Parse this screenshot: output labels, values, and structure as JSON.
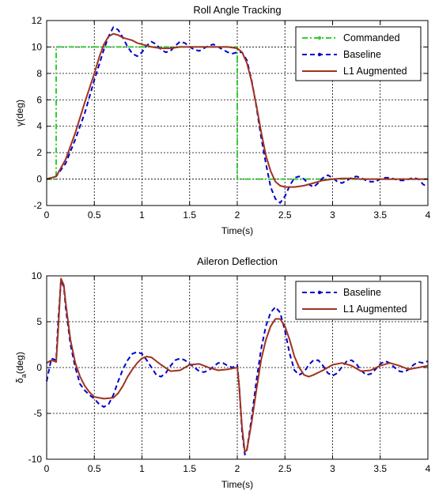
{
  "chart_data": [
    {
      "type": "line",
      "title": "Roll Angle Tracking",
      "xlabel": "Time(s)",
      "ylabel": "γ(deg)",
      "xlim": [
        0,
        4
      ],
      "ylim": [
        -2,
        12
      ],
      "xticks": [
        0,
        0.5,
        1,
        1.5,
        2,
        2.5,
        3,
        3.5,
        4
      ],
      "yticks": [
        -2,
        0,
        2,
        4,
        6,
        8,
        10,
        12
      ],
      "xtick_labels": [
        "0",
        "0.5",
        "1",
        "1.5",
        "2",
        "2.5",
        "3",
        "3.5",
        "4"
      ],
      "ytick_labels": [
        "-2",
        "0",
        "2",
        "4",
        "6",
        "8",
        "10",
        "12"
      ],
      "grid": true,
      "legend_position": "top-right",
      "series": [
        {
          "name": "Commanded",
          "color": "#33cc33",
          "style": "dash-dot",
          "x": [
            0,
            0.1,
            0.1,
            2.0,
            2.0,
            4.0
          ],
          "y": [
            0,
            0,
            10,
            10,
            0,
            0
          ]
        },
        {
          "name": "Baseline",
          "color": "#0000cc",
          "style": "dashed",
          "x": [
            0,
            0.1,
            0.2,
            0.3,
            0.4,
            0.5,
            0.6,
            0.65,
            0.7,
            0.75,
            0.8,
            0.85,
            0.9,
            0.95,
            1.0,
            1.05,
            1.1,
            1.15,
            1.2,
            1.25,
            1.3,
            1.35,
            1.4,
            1.45,
            1.5,
            1.55,
            1.6,
            1.65,
            1.7,
            1.75,
            1.8,
            1.85,
            1.9,
            1.95,
            2.0,
            2.05,
            2.1,
            2.15,
            2.2,
            2.25,
            2.3,
            2.35,
            2.4,
            2.45,
            2.5,
            2.55,
            2.6,
            2.65,
            2.7,
            2.75,
            2.8,
            2.85,
            2.9,
            2.95,
            3.0,
            3.05,
            3.1,
            3.15,
            3.2,
            3.25,
            3.3,
            3.35,
            3.4,
            3.45,
            3.5,
            3.55,
            3.6,
            3.65,
            3.7,
            3.75,
            3.8,
            3.85,
            3.9,
            3.95,
            4.0
          ],
          "y": [
            0,
            0.2,
            1.2,
            3.0,
            5.0,
            7.5,
            9.8,
            10.8,
            11.5,
            11.3,
            10.7,
            10.0,
            9.5,
            9.3,
            9.6,
            10.1,
            10.4,
            10.2,
            9.8,
            9.6,
            9.7,
            10.1,
            10.4,
            10.3,
            10.0,
            9.8,
            9.7,
            9.9,
            10.1,
            10.2,
            10.0,
            9.8,
            9.6,
            9.5,
            9.6,
            9.6,
            9.0,
            7.5,
            5.5,
            3.2,
            1.2,
            -0.6,
            -1.5,
            -1.8,
            -1.3,
            -0.5,
            0.1,
            0.2,
            0.0,
            -0.4,
            -0.6,
            -0.3,
            0.1,
            0.3,
            0.1,
            -0.2,
            -0.3,
            -0.1,
            0.1,
            0.2,
            0.1,
            -0.1,
            -0.2,
            -0.2,
            0.0,
            0.1,
            0.1,
            0.0,
            -0.1,
            -0.1,
            0.0,
            0.1,
            0.0,
            -0.4,
            -0.6
          ]
        },
        {
          "name": "L1 Augmented",
          "color": "#a0321e",
          "style": "solid",
          "x": [
            0,
            0.1,
            0.2,
            0.3,
            0.4,
            0.5,
            0.55,
            0.6,
            0.65,
            0.7,
            0.75,
            0.8,
            0.85,
            0.9,
            0.95,
            1.0,
            1.1,
            1.2,
            1.3,
            1.4,
            1.5,
            1.6,
            1.7,
            1.8,
            1.9,
            2.0,
            2.05,
            2.1,
            2.15,
            2.2,
            2.25,
            2.3,
            2.35,
            2.4,
            2.45,
            2.5,
            2.6,
            2.7,
            2.8,
            2.9,
            3.0,
            3.1,
            3.2,
            3.3,
            3.4,
            3.5,
            3.6,
            3.7,
            3.8,
            3.9,
            4.0
          ],
          "y": [
            0,
            0.2,
            1.5,
            3.5,
            5.8,
            8.0,
            9.2,
            10.2,
            10.8,
            11.0,
            10.9,
            10.7,
            10.6,
            10.5,
            10.3,
            10.2,
            10.0,
            9.9,
            9.9,
            10.0,
            10.0,
            10.0,
            10.0,
            10.0,
            10.0,
            9.9,
            9.6,
            8.8,
            7.4,
            5.6,
            3.6,
            1.8,
            0.6,
            -0.2,
            -0.5,
            -0.6,
            -0.6,
            -0.5,
            -0.3,
            -0.1,
            0.0,
            0.05,
            0.05,
            0.0,
            0.0,
            0.0,
            0.0,
            0.0,
            0.0,
            0.0,
            0.0
          ]
        }
      ]
    },
    {
      "type": "line",
      "title": "Aileron Deflection",
      "xlabel": "Time(s)",
      "ylabel": "δa(deg)",
      "ylabel_main": "δ",
      "ylabel_sub": "a",
      "ylabel_rest": "(deg)",
      "xlim": [
        0,
        4
      ],
      "ylim": [
        -10,
        10
      ],
      "xticks": [
        0,
        0.5,
        1,
        1.5,
        2,
        2.5,
        3,
        3.5,
        4
      ],
      "yticks": [
        -10,
        -5,
        0,
        5,
        10
      ],
      "xtick_labels": [
        "0",
        "0.5",
        "1",
        "1.5",
        "2",
        "2.5",
        "3",
        "3.5",
        "4"
      ],
      "ytick_labels": [
        "-10",
        "-5",
        "0",
        "5",
        "10"
      ],
      "grid": true,
      "legend_position": "top-right",
      "series": [
        {
          "name": "Baseline",
          "color": "#0000cc",
          "style": "dashed",
          "x": [
            0,
            0.05,
            0.1,
            0.12,
            0.15,
            0.18,
            0.2,
            0.25,
            0.3,
            0.35,
            0.4,
            0.45,
            0.5,
            0.55,
            0.6,
            0.65,
            0.7,
            0.75,
            0.8,
            0.85,
            0.9,
            0.95,
            1.0,
            1.05,
            1.1,
            1.15,
            1.2,
            1.25,
            1.3,
            1.35,
            1.4,
            1.45,
            1.5,
            1.55,
            1.6,
            1.65,
            1.7,
            1.75,
            1.8,
            1.85,
            1.9,
            1.95,
            2.0,
            2.02,
            2.05,
            2.08,
            2.1,
            2.15,
            2.2,
            2.25,
            2.3,
            2.35,
            2.4,
            2.45,
            2.5,
            2.55,
            2.6,
            2.65,
            2.7,
            2.75,
            2.8,
            2.85,
            2.9,
            2.95,
            3.0,
            3.05,
            3.1,
            3.15,
            3.2,
            3.25,
            3.3,
            3.35,
            3.4,
            3.45,
            3.5,
            3.55,
            3.6,
            3.65,
            3.7,
            3.75,
            3.8,
            3.85,
            3.9,
            3.95,
            4.0
          ],
          "y": [
            -1.5,
            1.0,
            0.8,
            5.0,
            9.5,
            8.8,
            6.5,
            2.5,
            0.0,
            -1.8,
            -2.5,
            -3.0,
            -3.4,
            -4.0,
            -4.3,
            -4.0,
            -3.0,
            -1.5,
            -0.2,
            0.8,
            1.5,
            1.7,
            1.5,
            0.8,
            0.0,
            -0.8,
            -1.0,
            -0.6,
            0.2,
            0.8,
            1.0,
            0.8,
            0.4,
            0.0,
            -0.4,
            -0.5,
            -0.3,
            0.1,
            0.5,
            0.5,
            0.2,
            0.0,
            0.3,
            -2.0,
            -7.0,
            -9.5,
            -9.0,
            -5.5,
            -1.5,
            2.0,
            4.5,
            6.0,
            6.6,
            6.0,
            4.0,
            1.5,
            -0.3,
            -0.8,
            -0.5,
            0.3,
            0.8,
            0.8,
            0.2,
            -0.6,
            -0.9,
            -0.6,
            0.1,
            0.7,
            0.8,
            0.4,
            -0.3,
            -0.8,
            -0.7,
            -0.2,
            0.4,
            0.7,
            0.5,
            0.0,
            -0.4,
            -0.5,
            -0.2,
            0.3,
            0.6,
            0.5,
            0.7
          ]
        },
        {
          "name": "L1 Augmented",
          "color": "#a0321e",
          "style": "solid",
          "x": [
            0,
            0.05,
            0.1,
            0.12,
            0.15,
            0.18,
            0.2,
            0.25,
            0.3,
            0.35,
            0.4,
            0.45,
            0.5,
            0.6,
            0.7,
            0.75,
            0.8,
            0.85,
            0.9,
            0.95,
            1.0,
            1.05,
            1.1,
            1.15,
            1.2,
            1.3,
            1.4,
            1.5,
            1.6,
            1.7,
            1.8,
            1.9,
            2.0,
            2.02,
            2.05,
            2.08,
            2.1,
            2.15,
            2.2,
            2.25,
            2.3,
            2.35,
            2.4,
            2.45,
            2.5,
            2.55,
            2.6,
            2.65,
            2.7,
            2.75,
            2.8,
            2.9,
            3.0,
            3.1,
            3.2,
            3.3,
            3.4,
            3.5,
            3.6,
            3.7,
            3.8,
            3.9,
            4.0
          ],
          "y": [
            0.5,
            0.8,
            0.6,
            4.0,
            9.7,
            9.0,
            7.0,
            3.0,
            0.5,
            -1.0,
            -2.0,
            -2.7,
            -3.2,
            -3.4,
            -3.3,
            -2.8,
            -2.0,
            -1.0,
            -0.2,
            0.5,
            1.0,
            1.2,
            1.1,
            0.7,
            0.3,
            -0.4,
            -0.3,
            0.3,
            0.4,
            0.0,
            -0.3,
            -0.2,
            0.0,
            -2.0,
            -6.5,
            -9.2,
            -9.0,
            -6.0,
            -2.5,
            0.8,
            3.0,
            4.5,
            5.3,
            5.3,
            4.5,
            3.0,
            1.2,
            0.0,
            -0.8,
            -1.0,
            -0.8,
            -0.3,
            0.3,
            0.5,
            0.2,
            -0.4,
            -0.3,
            0.2,
            0.5,
            0.2,
            -0.2,
            0.0,
            0.2
          ]
        }
      ]
    }
  ]
}
